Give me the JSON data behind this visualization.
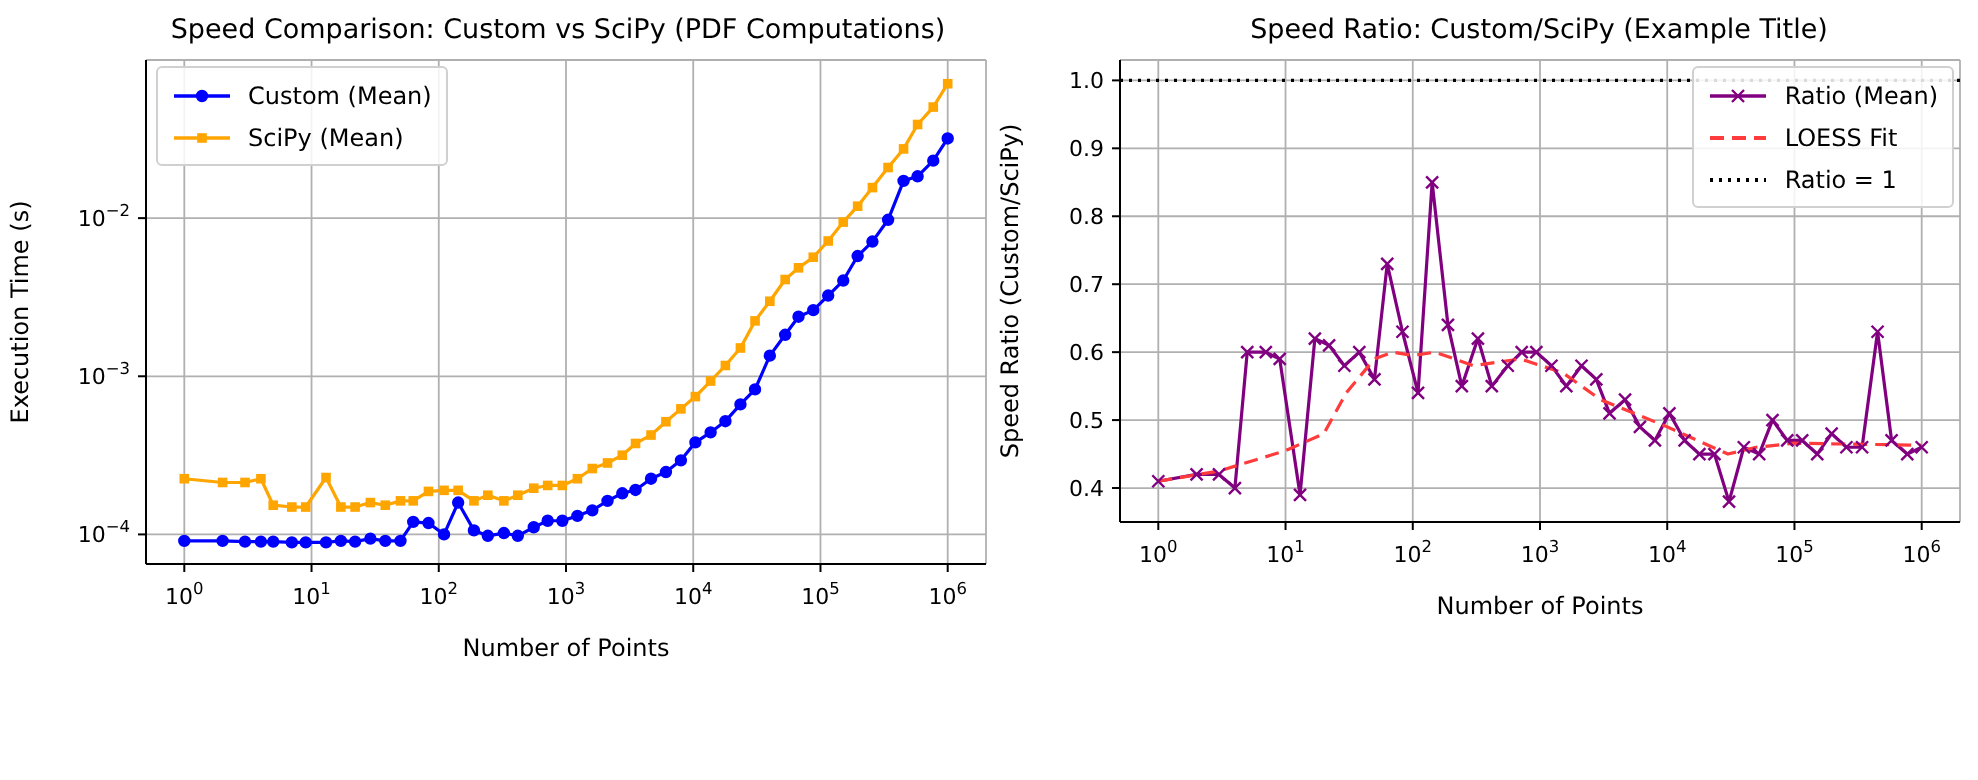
{
  "chart_data": [
    {
      "type": "line",
      "title": "Speed Comparison: Custom vs SciPy (PDF Computations)",
      "xlabel": "Number of Points",
      "ylabel": "Execution Time (s)",
      "log": "xy",
      "grid": true,
      "legend": "top left",
      "x": [
        1,
        2,
        3,
        4,
        5,
        7,
        9,
        13,
        17,
        22,
        29,
        38,
        50,
        63,
        83,
        110,
        142,
        189,
        243,
        325,
        418,
        558,
        718,
        936,
        1230,
        1610,
        2120,
        2770,
        3520,
        4660,
        6100,
        8000,
        10400,
        13700,
        17900,
        23500,
        30600,
        40000,
        52800,
        67200,
        87800,
        115000,
        151000,
        196000,
        256000,
        340000,
        450000,
        580000,
        770000,
        1000000
      ],
      "xlim": [
        0.5,
        2000000
      ],
      "xticks": [
        {
          "value": 1,
          "label": "10$^{0}$"
        },
        {
          "value": 10,
          "label": "10$^{1}$"
        },
        {
          "value": 100,
          "label": "10$^{2}$"
        },
        {
          "value": 1000,
          "label": "10$^{3}$"
        },
        {
          "value": 10000,
          "label": "10$^{4}$"
        },
        {
          "value": 100000,
          "label": "10$^{5}$"
        },
        {
          "value": 1000000,
          "label": "10$^{6}$"
        }
      ],
      "ylim": [
        6.5e-05,
        0.1
      ],
      "yticks": [
        {
          "value": 0.0001,
          "label": "10$^{−4}$"
        },
        {
          "value": 0.001,
          "label": "10$^{−3}$"
        },
        {
          "value": 0.01,
          "label": "10$^{−2}$"
        }
      ],
      "series": [
        {
          "name": "Custom (Mean)",
          "color": "#0000ff",
          "marker": "circle",
          "values": [
            9.1e-05,
            9.1e-05,
            9e-05,
            9e-05,
            9e-05,
            8.9e-05,
            8.9e-05,
            8.9e-05,
            9.1e-05,
            9e-05,
            9.4e-05,
            9.1e-05,
            9.1e-05,
            0.00012,
            0.000118,
            0.0001,
            0.000159,
            0.000106,
            9.8e-05,
            0.000102,
            9.8e-05,
            0.000111,
            0.000122,
            0.000122,
            0.000131,
            0.000142,
            0.000163,
            0.000182,
            0.000191,
            0.000225,
            0.000248,
            0.000294,
            0.000382,
            0.000442,
            0.00052,
            0.000664,
            0.000826,
            0.00135,
            0.00183,
            0.00238,
            0.00262,
            0.00324,
            0.00403,
            0.00576,
            0.00711,
            0.00976,
            0.0172,
            0.0184,
            0.0231,
            0.0319
          ]
        },
        {
          "name": "SciPy (Mean)",
          "color": "#ffa500",
          "marker": "square",
          "values": [
            0.000225,
            0.000213,
            0.000213,
            0.000225,
            0.000153,
            0.000149,
            0.000149,
            0.000229,
            0.000149,
            0.000149,
            0.000159,
            0.000153,
            0.000163,
            0.000163,
            0.000187,
            0.00019,
            0.00019,
            0.000163,
            0.000177,
            0.000163,
            0.000177,
            0.000196,
            0.000204,
            0.000204,
            0.000225,
            0.000261,
            0.000283,
            0.000317,
            0.000376,
            0.000425,
            0.000516,
            0.000622,
            0.000744,
            0.000933,
            0.00117,
            0.00151,
            0.00224,
            0.00298,
            0.00409,
            0.00485,
            0.00566,
            0.00717,
            0.00944,
            0.0119,
            0.0156,
            0.0209,
            0.0274,
            0.0391,
            0.0504,
            0.0708
          ]
        }
      ]
    },
    {
      "type": "line",
      "title": "Speed Ratio: Custom/SciPy (Example Title)",
      "xlabel": "Number of Points",
      "ylabel": "Speed Ratio (Custom/SciPy)",
      "log": "x",
      "grid": true,
      "legend": "top right",
      "x": [
        1,
        2,
        3,
        4,
        5,
        7,
        9,
        13,
        17,
        22,
        29,
        38,
        50,
        63,
        83,
        110,
        142,
        189,
        243,
        325,
        418,
        558,
        718,
        936,
        1230,
        1610,
        2120,
        2770,
        3520,
        4660,
        6100,
        8000,
        10400,
        13700,
        17900,
        23500,
        30600,
        40000,
        52800,
        67200,
        87800,
        115000,
        151000,
        196000,
        256000,
        340000,
        450000,
        580000,
        770000,
        1000000
      ],
      "xlim": [
        0.5,
        2000000
      ],
      "xticks": [
        {
          "value": 1,
          "label": "10$^{0}$"
        },
        {
          "value": 10,
          "label": "10$^{1}$"
        },
        {
          "value": 100,
          "label": "10$^{2}$"
        },
        {
          "value": 1000,
          "label": "10$^{3}$"
        },
        {
          "value": 10000,
          "label": "10$^{4}$"
        },
        {
          "value": 100000,
          "label": "10$^{5}$"
        },
        {
          "value": 1000000,
          "label": "10$^{6}$"
        }
      ],
      "ylim": [
        0.35,
        1.03
      ],
      "yticks": [
        0.4,
        0.5,
        0.6,
        0.7,
        0.8,
        0.9,
        {
          "value": 1.0,
          "label": "1.0"
        }
      ],
      "series": [
        {
          "name": "Ratio (Mean)",
          "color": "#800080",
          "marker": "cross",
          "values": [
            0.41,
            0.42,
            0.42,
            0.4,
            0.6,
            0.6,
            0.59,
            0.39,
            0.62,
            0.61,
            0.58,
            0.6,
            0.56,
            0.73,
            0.63,
            0.54,
            0.85,
            0.64,
            0.55,
            0.62,
            0.55,
            0.58,
            0.6,
            0.6,
            0.58,
            0.55,
            0.58,
            0.56,
            0.51,
            0.53,
            0.49,
            0.47,
            0.51,
            0.47,
            0.45,
            0.45,
            0.38,
            0.46,
            0.45,
            0.5,
            0.47,
            0.47,
            0.45,
            0.48,
            0.46,
            0.46,
            0.63,
            0.47,
            0.45,
            0.46
          ]
        },
        {
          "name": "LOESS Fit",
          "color": "#ff3b3b",
          "marker": "none",
          "line_style": "dashed",
          "x": [
            1,
            3,
            10,
            20,
            30,
            50,
            70,
            100,
            150,
            300,
            700,
            1500,
            3000,
            10000,
            30000,
            50000,
            100000,
            1000000
          ],
          "values": [
            0.41,
            0.425,
            0.455,
            0.48,
            0.54,
            0.59,
            0.6,
            0.595,
            0.6,
            0.58,
            0.59,
            0.57,
            0.53,
            0.49,
            0.45,
            0.46,
            0.466,
            0.463
          ]
        }
      ],
      "ref_lines": [
        {
          "axis": "y",
          "value": 1.0,
          "label": "Ratio = 1",
          "color": "#000000",
          "line_style": "dotted"
        }
      ]
    }
  ]
}
